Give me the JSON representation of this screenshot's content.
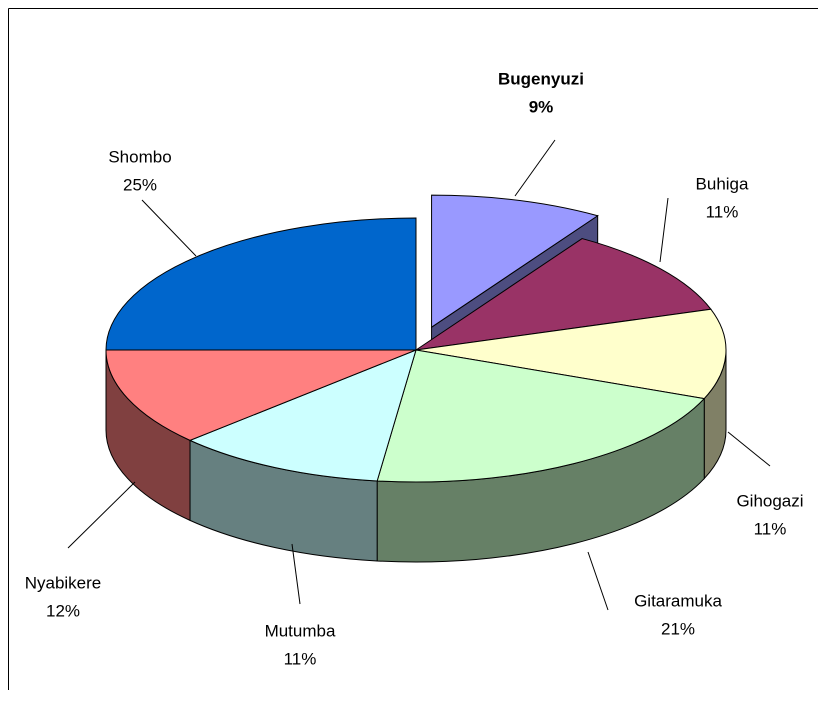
{
  "chart_data": {
    "type": "pie",
    "categories": [
      "Bugenyuzi",
      "Buhiga",
      "Gihogazi",
      "Gitaramuka",
      "Mutumba",
      "Nyabikere",
      "Shombo"
    ],
    "values": [
      9,
      11,
      11,
      21,
      11,
      12,
      25
    ],
    "value_labels": [
      "9%",
      "11%",
      "11%",
      "21%",
      "11%",
      "12%",
      "25%"
    ],
    "colors": [
      "#9999ff",
      "#993366",
      "#ffffcc",
      "#ccffcc",
      "#ccffff",
      "#ff8080",
      "#0066cc"
    ]
  }
}
